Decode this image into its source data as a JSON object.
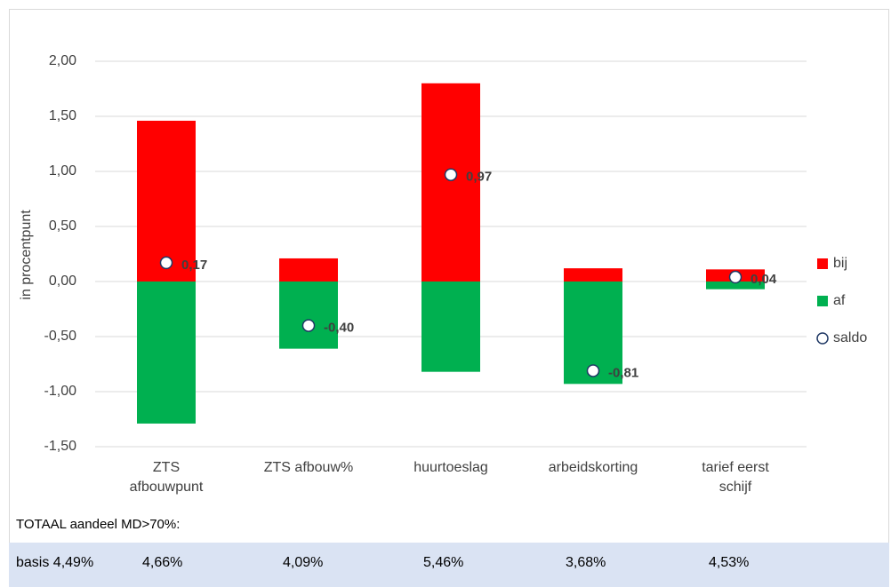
{
  "chart_data": {
    "type": "bar",
    "categories": [
      "ZTS afbouwpunt",
      "ZTS afbouw%",
      "huurtoeslag",
      "arbeidskorting",
      "tarief eerst schijf"
    ],
    "ylabel": "in procentpunt",
    "series": [
      {
        "name": "bij",
        "color": "#ff0000",
        "values": [
          1.46,
          0.21,
          1.8,
          0.12,
          0.11
        ]
      },
      {
        "name": "af",
        "color": "#00b050",
        "values": [
          -1.29,
          -0.61,
          -0.82,
          -0.93,
          -0.07
        ]
      },
      {
        "name": "saldo",
        "color": "#ffffff",
        "marker": "circle",
        "values": [
          0.17,
          -0.4,
          0.97,
          -0.81,
          0.04
        ],
        "value_labels": [
          "0,17",
          "-0,40",
          "0,97",
          "-0,81",
          "0,04"
        ]
      }
    ],
    "ylim": [
      -1.5,
      2.0
    ],
    "yticks": [
      {
        "value": -1.5,
        "label": "-1,50"
      },
      {
        "value": -1.0,
        "label": "-1,00"
      },
      {
        "value": -0.5,
        "label": "-0,50"
      },
      {
        "value": 0,
        "label": "0,00"
      },
      {
        "value": 0.5,
        "label": "0,50"
      },
      {
        "value": 1.0,
        "label": "1,00"
      },
      {
        "value": 1.5,
        "label": "1,50"
      },
      {
        "value": 2.0,
        "label": "2,00"
      }
    ],
    "grid": true,
    "legend": "right"
  },
  "table": {
    "caption": "TOTAAL aandeel MD>70%:",
    "cells": [
      "basis 4,49%",
      "4,66%",
      "4,09%",
      "5,46%",
      "3,68%",
      "4,53%"
    ]
  }
}
